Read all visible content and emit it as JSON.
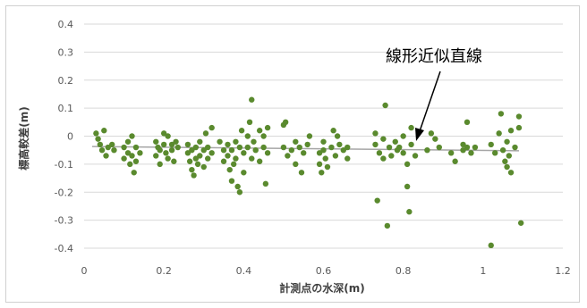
{
  "chart_data": {
    "type": "scatter",
    "title": "",
    "xlabel": "計測点の水深(m)",
    "ylabel": "標高較差(m)",
    "xlim": [
      0,
      1.2
    ],
    "ylim": [
      -0.4,
      0.4
    ],
    "x_ticks": [
      "0",
      "0.2",
      "0.4",
      "0.6",
      "0.8",
      "1",
      "1.2"
    ],
    "y_ticks": [
      "0.4",
      "0.3",
      "0.2",
      "0.1",
      "0",
      "-0.1",
      "-0.2",
      "-0.3",
      "-0.4"
    ],
    "grid": "horizontal",
    "colors": {
      "points": "#5a8a2e",
      "trendline": "#a6a6a6",
      "grid": "#d9d9d9"
    },
    "annotation": {
      "text": "線形近似直線"
    },
    "trendline": {
      "x": [
        0.02,
        1.09
      ],
      "y": [
        -0.037,
        -0.052
      ]
    },
    "points": [
      [
        0.03,
        0.01
      ],
      [
        0.035,
        -0.01
      ],
      [
        0.04,
        -0.03
      ],
      [
        0.045,
        -0.05
      ],
      [
        0.05,
        0.02
      ],
      [
        0.055,
        -0.07
      ],
      [
        0.06,
        -0.04
      ],
      [
        0.07,
        -0.03
      ],
      [
        0.075,
        -0.05
      ],
      [
        0.1,
        -0.04
      ],
      [
        0.1,
        -0.08
      ],
      [
        0.11,
        -0.02
      ],
      [
        0.11,
        -0.06
      ],
      [
        0.115,
        -0.1
      ],
      [
        0.12,
        0.0
      ],
      [
        0.12,
        -0.07
      ],
      [
        0.125,
        -0.13
      ],
      [
        0.13,
        -0.04
      ],
      [
        0.13,
        -0.09
      ],
      [
        0.14,
        -0.06
      ],
      [
        0.18,
        -0.02
      ],
      [
        0.18,
        -0.07
      ],
      [
        0.185,
        -0.04
      ],
      [
        0.19,
        -0.05
      ],
      [
        0.19,
        -0.1
      ],
      [
        0.2,
        0.01
      ],
      [
        0.2,
        -0.03
      ],
      [
        0.205,
        -0.06
      ],
      [
        0.21,
        -0.08
      ],
      [
        0.21,
        0.0
      ],
      [
        0.22,
        -0.03
      ],
      [
        0.22,
        -0.05
      ],
      [
        0.225,
        -0.09
      ],
      [
        0.23,
        -0.02
      ],
      [
        0.235,
        -0.04
      ],
      [
        0.26,
        -0.03
      ],
      [
        0.26,
        -0.06
      ],
      [
        0.265,
        -0.09
      ],
      [
        0.27,
        -0.12
      ],
      [
        0.27,
        -0.05
      ],
      [
        0.275,
        -0.14
      ],
      [
        0.28,
        -0.04
      ],
      [
        0.28,
        -0.08
      ],
      [
        0.285,
        -0.1
      ],
      [
        0.29,
        -0.02
      ],
      [
        0.29,
        -0.07
      ],
      [
        0.3,
        -0.05
      ],
      [
        0.3,
        -0.11
      ],
      [
        0.305,
        0.01
      ],
      [
        0.31,
        -0.04
      ],
      [
        0.31,
        -0.08
      ],
      [
        0.32,
        -0.06
      ],
      [
        0.32,
        0.03
      ],
      [
        0.34,
        -0.02
      ],
      [
        0.35,
        -0.05
      ],
      [
        0.35,
        -0.09
      ],
      [
        0.36,
        -0.03
      ],
      [
        0.36,
        -0.07
      ],
      [
        0.365,
        -0.12
      ],
      [
        0.37,
        -0.16
      ],
      [
        0.37,
        -0.05
      ],
      [
        0.375,
        -0.1
      ],
      [
        0.38,
        -0.02
      ],
      [
        0.38,
        -0.08
      ],
      [
        0.385,
        -0.18
      ],
      [
        0.39,
        -0.2
      ],
      [
        0.39,
        -0.04
      ],
      [
        0.395,
        0.02
      ],
      [
        0.4,
        -0.06
      ],
      [
        0.4,
        -0.13
      ],
      [
        0.41,
        0.0
      ],
      [
        0.41,
        -0.04
      ],
      [
        0.415,
        0.05
      ],
      [
        0.42,
        0.13
      ],
      [
        0.42,
        -0.08
      ],
      [
        0.425,
        -0.02
      ],
      [
        0.43,
        -0.05
      ],
      [
        0.44,
        0.02
      ],
      [
        0.44,
        -0.09
      ],
      [
        0.45,
        -0.04
      ],
      [
        0.45,
        0.0
      ],
      [
        0.455,
        -0.17
      ],
      [
        0.46,
        -0.06
      ],
      [
        0.46,
        0.03
      ],
      [
        0.5,
        0.04
      ],
      [
        0.5,
        -0.04
      ],
      [
        0.505,
        0.05
      ],
      [
        0.51,
        -0.07
      ],
      [
        0.52,
        -0.05
      ],
      [
        0.53,
        -0.02
      ],
      [
        0.53,
        -0.1
      ],
      [
        0.54,
        -0.04
      ],
      [
        0.545,
        -0.13
      ],
      [
        0.55,
        -0.06
      ],
      [
        0.56,
        -0.03
      ],
      [
        0.565,
        0.0
      ],
      [
        0.59,
        -0.06
      ],
      [
        0.59,
        -0.1
      ],
      [
        0.595,
        -0.13
      ],
      [
        0.6,
        -0.02
      ],
      [
        0.6,
        -0.05
      ],
      [
        0.605,
        -0.08
      ],
      [
        0.61,
        -0.11
      ],
      [
        0.62,
        -0.04
      ],
      [
        0.625,
        0.02
      ],
      [
        0.63,
        -0.07
      ],
      [
        0.635,
        0.0
      ],
      [
        0.64,
        -0.03
      ],
      [
        0.65,
        -0.05
      ],
      [
        0.66,
        -0.08
      ],
      [
        0.66,
        -0.04
      ],
      [
        0.73,
        0.01
      ],
      [
        0.73,
        -0.03
      ],
      [
        0.735,
        -0.23
      ],
      [
        0.74,
        -0.06
      ],
      [
        0.75,
        -0.01
      ],
      [
        0.75,
        -0.08
      ],
      [
        0.755,
        0.11
      ],
      [
        0.76,
        -0.32
      ],
      [
        0.765,
        -0.04
      ],
      [
        0.77,
        -0.07
      ],
      [
        0.78,
        -0.02
      ],
      [
        0.785,
        -0.05
      ],
      [
        0.79,
        -0.04
      ],
      [
        0.8,
        0.0
      ],
      [
        0.8,
        -0.06
      ],
      [
        0.81,
        -0.1
      ],
      [
        0.81,
        -0.18
      ],
      [
        0.815,
        -0.27
      ],
      [
        0.82,
        0.03
      ],
      [
        0.82,
        -0.03
      ],
      [
        0.83,
        -0.07
      ],
      [
        0.86,
        -0.05
      ],
      [
        0.87,
        0.01
      ],
      [
        0.88,
        -0.01
      ],
      [
        0.89,
        -0.04
      ],
      [
        0.92,
        -0.06
      ],
      [
        0.93,
        -0.09
      ],
      [
        0.95,
        -0.03
      ],
      [
        0.95,
        -0.05
      ],
      [
        0.96,
        0.05
      ],
      [
        0.96,
        -0.04
      ],
      [
        0.97,
        -0.06
      ],
      [
        0.98,
        -0.04
      ],
      [
        1.02,
        -0.03
      ],
      [
        1.02,
        -0.39
      ],
      [
        1.03,
        -0.06
      ],
      [
        1.04,
        0.01
      ],
      [
        1.045,
        0.08
      ],
      [
        1.05,
        -0.05
      ],
      [
        1.055,
        -0.09
      ],
      [
        1.06,
        -0.02
      ],
      [
        1.06,
        -0.11
      ],
      [
        1.065,
        -0.07
      ],
      [
        1.07,
        -0.13
      ],
      [
        1.07,
        0.02
      ],
      [
        1.08,
        -0.04
      ],
      [
        1.09,
        0.03
      ],
      [
        1.09,
        0.07
      ],
      [
        1.095,
        -0.31
      ]
    ]
  }
}
